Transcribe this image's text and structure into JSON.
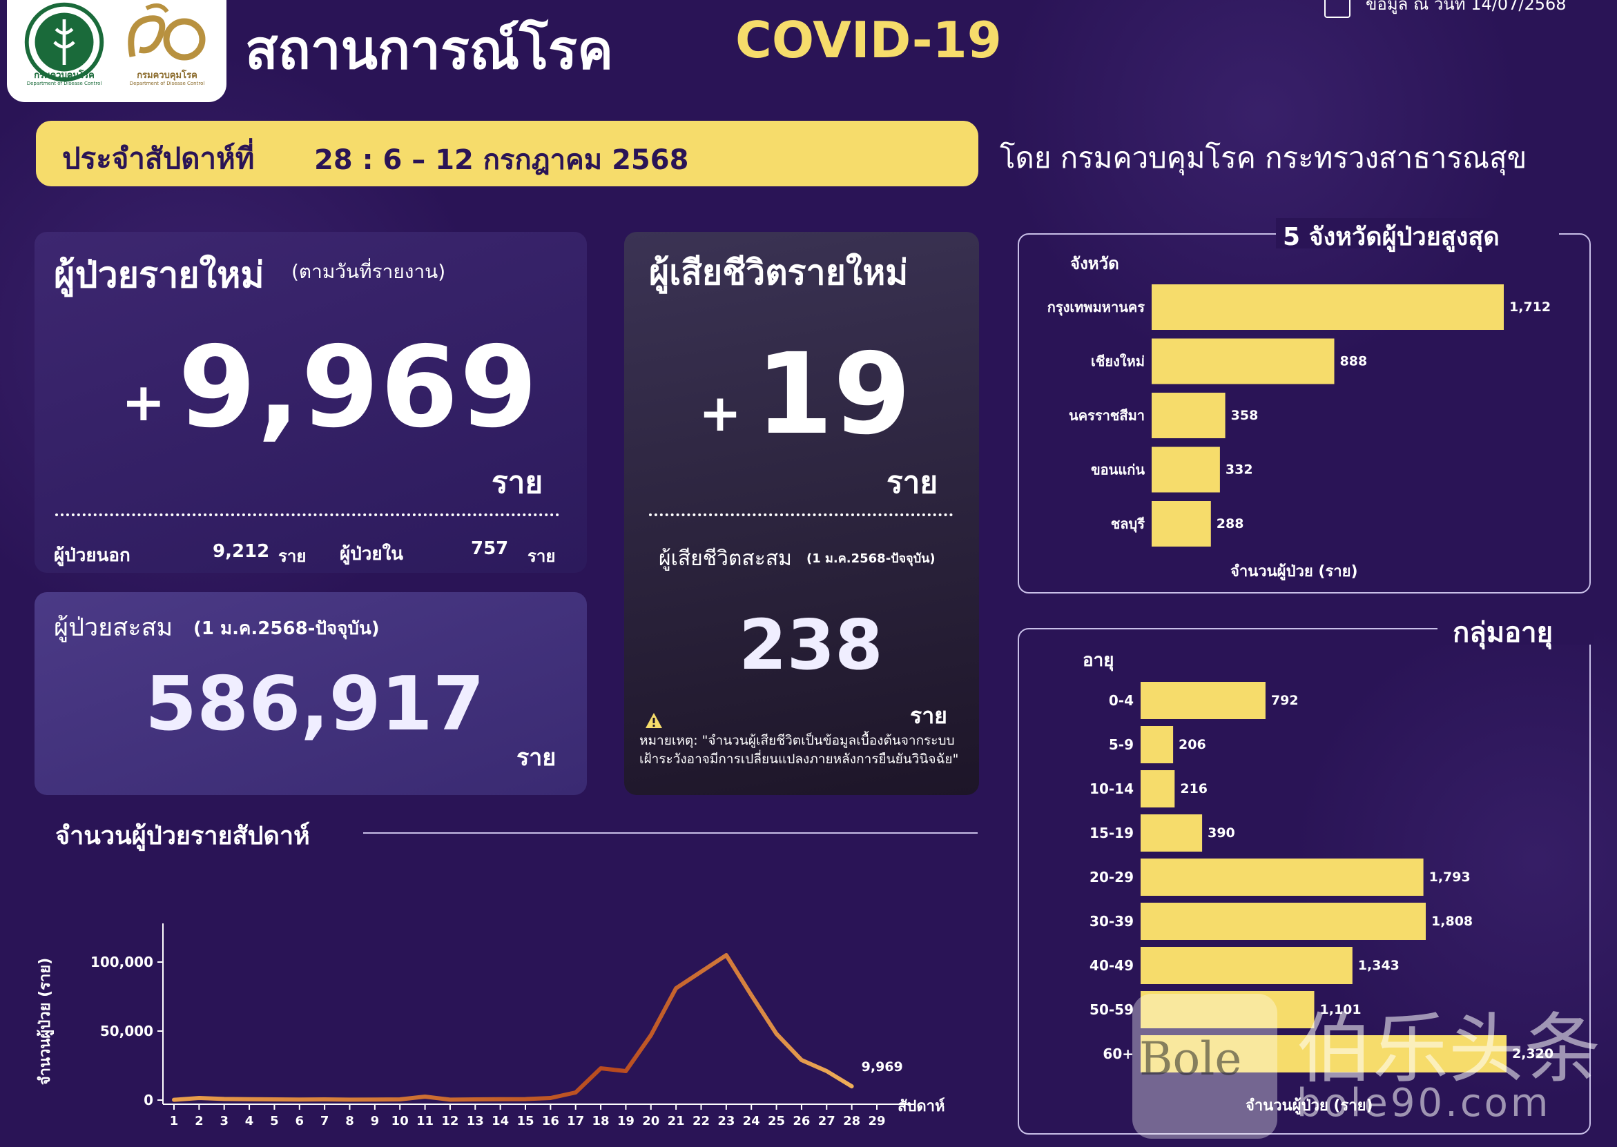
{
  "header": {
    "title_th": "สถานการณ์โรค",
    "title_en": "COVID-19",
    "date_note": "ข้อมูล ณ วันที่ 14/07/2568",
    "logos": {
      "moph_caption": "กรมควบคุมโรค",
      "moph_sub": "Department of Disease Control",
      "ann_caption": "กรมควบคุมโรค",
      "ann_sub": "Department of Disease Control"
    }
  },
  "week": {
    "label": "ประจำสัปดาห์ที่",
    "range": "28 : 6 – 12 กรกฎาคม 2568",
    "byline": "โดย กรมควบคุมโรค  กระทรวงสาธารณสุข"
  },
  "new_cases": {
    "title": "ผู้ป่วยรายใหม่",
    "subtitle": "(ตามวันที่รายงาน)",
    "plus": "+",
    "value": "9,969",
    "unit": "ราย",
    "opd_label": "ผู้ป่วยนอก",
    "opd_value": "9,212",
    "opd_unit": "ราย",
    "ipd_label": "ผู้ป่วยใน",
    "ipd_value": "757",
    "ipd_unit": "ราย"
  },
  "cumulative_cases": {
    "title": "ผู้ป่วยสะสม",
    "subtitle": "(1 ม.ค.2568-ปัจจุบัน)",
    "value": "586,917",
    "unit": "ราย"
  },
  "deaths": {
    "title": "ผู้เสียชีวิตรายใหม่",
    "plus": "+",
    "value": "19",
    "unit": "ราย",
    "cum_title": "ผู้เสียชีวิตสะสม",
    "cum_subtitle": "(1 ม.ค.2568-ปัจจุบัน)",
    "cum_value": "238",
    "cum_unit": "ราย",
    "note": "หมายเหตุ: \"จำนวนผู้เสียชีวิตเป็นข้อมูลเบื้องต้นจากระบบเฝ้าระวังอาจมีการเปลี่ยนแปลงภายหลังการยืนยันวินิจฉัย\""
  },
  "colors": {
    "background": "#2a1456",
    "accent_yellow": "#f6dc6b",
    "line_start": "#e9a04c",
    "line_peak": "#b84a1e"
  },
  "chart_data": [
    {
      "type": "line",
      "title": "จำนวนผู้ป่วยรายสัปดาห์",
      "ylabel": "จำนวนผู้ป่วย (ราย)",
      "xlabel": "สัปดาห์",
      "ylim": [
        0,
        100000
      ],
      "yticks": [
        "0",
        "50,000",
        "100,000"
      ],
      "x": [
        1,
        2,
        3,
        4,
        5,
        6,
        7,
        8,
        9,
        10,
        11,
        12,
        13,
        14,
        15,
        16,
        17,
        18,
        19,
        20,
        21,
        22,
        23,
        24,
        25,
        26,
        27,
        28,
        29
      ],
      "values": [
        200,
        1500,
        800,
        600,
        500,
        400,
        500,
        300,
        400,
        500,
        2500,
        300,
        500,
        600,
        700,
        1500,
        5500,
        23000,
        21000,
        47000,
        81000,
        93000,
        105000,
        76000,
        48000,
        29000,
        21000,
        9969,
        null
      ],
      "last_label": "9,969",
      "grid": false
    },
    {
      "type": "bar",
      "title": "5  จังหวัดผู้ป่วยสูงสุด",
      "ylabel": "จังหวัด",
      "xlabel": "จำนวนผู้ป่วย (ราย)",
      "orientation": "horizontal",
      "categories": [
        "กรุงเทพมหานคร",
        "เชียงใหม่",
        "นครราชสีมา",
        "ขอนแก่น",
        "ชลบุรี"
      ],
      "values": [
        1712,
        888,
        358,
        332,
        288
      ],
      "value_labels": [
        "1,712",
        "888",
        "358",
        "332",
        "288"
      ]
    },
    {
      "type": "bar",
      "title": "กลุ่มอายุ",
      "ylabel": "อายุ",
      "xlabel": "จำนวนผู้ป่วย (ราย)",
      "orientation": "horizontal",
      "categories": [
        "0-4",
        "5-9",
        "10-14",
        "15-19",
        "20-29",
        "30-39",
        "40-49",
        "50-59",
        "60+"
      ],
      "values": [
        792,
        206,
        216,
        390,
        1793,
        1808,
        1343,
        1101,
        2320
      ],
      "value_labels": [
        "792",
        "206",
        "216",
        "390",
        "1,793",
        "1,808",
        "1,343",
        "1,101",
        "2,320"
      ]
    }
  ],
  "watermark": {
    "latin": "Bole",
    "cjk": "伯乐头条",
    "url": "bole90.com"
  }
}
